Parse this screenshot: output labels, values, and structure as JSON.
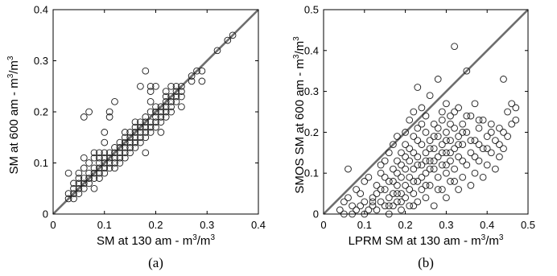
{
  "chart_data": [
    {
      "type": "scatter",
      "caption": "(a)",
      "xlabel": "SM at 130 am - m",
      "ylabel": "SM at 600 am - m",
      "unit_sup": "3",
      "unit_tail": "/m",
      "xlim": [
        0,
        0.4
      ],
      "ylim": [
        0,
        0.4
      ],
      "xticks": [
        "0",
        "0.1",
        "0.2",
        "0.3",
        "0.4"
      ],
      "yticks": [
        "0",
        "0.1",
        "0.2",
        "0.3",
        "0.4"
      ],
      "xtick_values": [
        0,
        0.1,
        0.2,
        0.3,
        0.4
      ],
      "ytick_values": [
        0,
        0.1,
        0.2,
        0.3,
        0.4
      ],
      "reference_line": "1:1",
      "marker": "open-circle",
      "points": [
        [
          0.03,
          0.03
        ],
        [
          0.03,
          0.04
        ],
        [
          0.03,
          0.08
        ],
        [
          0.04,
          0.03
        ],
        [
          0.04,
          0.04
        ],
        [
          0.04,
          0.05
        ],
        [
          0.04,
          0.06
        ],
        [
          0.05,
          0.04
        ],
        [
          0.05,
          0.05
        ],
        [
          0.05,
          0.06
        ],
        [
          0.05,
          0.07
        ],
        [
          0.05,
          0.08
        ],
        [
          0.06,
          0.05
        ],
        [
          0.06,
          0.06
        ],
        [
          0.06,
          0.07
        ],
        [
          0.06,
          0.09
        ],
        [
          0.06,
          0.11
        ],
        [
          0.06,
          0.19
        ],
        [
          0.07,
          0.06
        ],
        [
          0.07,
          0.07
        ],
        [
          0.07,
          0.08
        ],
        [
          0.07,
          0.1
        ],
        [
          0.07,
          0.2
        ],
        [
          0.08,
          0.05
        ],
        [
          0.08,
          0.07
        ],
        [
          0.08,
          0.08
        ],
        [
          0.08,
          0.09
        ],
        [
          0.08,
          0.11
        ],
        [
          0.08,
          0.12
        ],
        [
          0.09,
          0.07
        ],
        [
          0.09,
          0.08
        ],
        [
          0.09,
          0.09
        ],
        [
          0.09,
          0.1
        ],
        [
          0.09,
          0.11
        ],
        [
          0.09,
          0.12
        ],
        [
          0.1,
          0.08
        ],
        [
          0.1,
          0.09
        ],
        [
          0.1,
          0.1
        ],
        [
          0.1,
          0.11
        ],
        [
          0.1,
          0.12
        ],
        [
          0.1,
          0.14
        ],
        [
          0.1,
          0.16
        ],
        [
          0.11,
          0.09
        ],
        [
          0.11,
          0.1
        ],
        [
          0.11,
          0.11
        ],
        [
          0.11,
          0.12
        ],
        [
          0.11,
          0.19
        ],
        [
          0.11,
          0.2
        ],
        [
          0.12,
          0.09
        ],
        [
          0.12,
          0.1
        ],
        [
          0.12,
          0.11
        ],
        [
          0.12,
          0.12
        ],
        [
          0.12,
          0.13
        ],
        [
          0.12,
          0.22
        ],
        [
          0.13,
          0.1
        ],
        [
          0.13,
          0.11
        ],
        [
          0.13,
          0.12
        ],
        [
          0.13,
          0.13
        ],
        [
          0.13,
          0.14
        ],
        [
          0.14,
          0.11
        ],
        [
          0.14,
          0.12
        ],
        [
          0.14,
          0.13
        ],
        [
          0.14,
          0.14
        ],
        [
          0.14,
          0.15
        ],
        [
          0.14,
          0.16
        ],
        [
          0.15,
          0.12
        ],
        [
          0.15,
          0.13
        ],
        [
          0.15,
          0.14
        ],
        [
          0.15,
          0.15
        ],
        [
          0.15,
          0.16
        ],
        [
          0.16,
          0.13
        ],
        [
          0.16,
          0.14
        ],
        [
          0.16,
          0.15
        ],
        [
          0.16,
          0.16
        ],
        [
          0.16,
          0.17
        ],
        [
          0.16,
          0.18
        ],
        [
          0.17,
          0.14
        ],
        [
          0.17,
          0.15
        ],
        [
          0.17,
          0.16
        ],
        [
          0.17,
          0.17
        ],
        [
          0.17,
          0.18
        ],
        [
          0.17,
          0.25
        ],
        [
          0.18,
          0.12
        ],
        [
          0.18,
          0.15
        ],
        [
          0.18,
          0.16
        ],
        [
          0.18,
          0.17
        ],
        [
          0.18,
          0.18
        ],
        [
          0.18,
          0.19
        ],
        [
          0.18,
          0.28
        ],
        [
          0.19,
          0.16
        ],
        [
          0.19,
          0.17
        ],
        [
          0.19,
          0.18
        ],
        [
          0.19,
          0.2
        ],
        [
          0.19,
          0.22
        ],
        [
          0.19,
          0.24
        ],
        [
          0.19,
          0.25
        ],
        [
          0.2,
          0.17
        ],
        [
          0.2,
          0.18
        ],
        [
          0.2,
          0.19
        ],
        [
          0.2,
          0.2
        ],
        [
          0.2,
          0.21
        ],
        [
          0.2,
          0.25
        ],
        [
          0.21,
          0.16
        ],
        [
          0.21,
          0.18
        ],
        [
          0.21,
          0.19
        ],
        [
          0.21,
          0.2
        ],
        [
          0.21,
          0.21
        ],
        [
          0.22,
          0.19
        ],
        [
          0.22,
          0.2
        ],
        [
          0.22,
          0.21
        ],
        [
          0.22,
          0.22
        ],
        [
          0.22,
          0.23
        ],
        [
          0.22,
          0.24
        ],
        [
          0.23,
          0.2
        ],
        [
          0.23,
          0.21
        ],
        [
          0.23,
          0.22
        ],
        [
          0.23,
          0.23
        ],
        [
          0.23,
          0.25
        ],
        [
          0.24,
          0.22
        ],
        [
          0.24,
          0.23
        ],
        [
          0.24,
          0.24
        ],
        [
          0.24,
          0.25
        ],
        [
          0.25,
          0.21
        ],
        [
          0.25,
          0.23
        ],
        [
          0.25,
          0.24
        ],
        [
          0.25,
          0.25
        ],
        [
          0.27,
          0.26
        ],
        [
          0.27,
          0.27
        ],
        [
          0.28,
          0.28
        ],
        [
          0.29,
          0.26
        ],
        [
          0.29,
          0.28
        ],
        [
          0.32,
          0.32
        ],
        [
          0.34,
          0.34
        ],
        [
          0.35,
          0.35
        ]
      ]
    },
    {
      "type": "scatter",
      "caption": "(b)",
      "xlabel": "LPRM SM at 130 am - m",
      "ylabel": "SMOS SM at 600 am - m",
      "unit_sup": "3",
      "unit_tail": "/m",
      "xlim": [
        0,
        0.5
      ],
      "ylim": [
        0,
        0.5
      ],
      "xticks": [
        "0",
        "0.1",
        "0.2",
        "0.3",
        "0.4",
        "0.5"
      ],
      "yticks": [
        "0",
        "0.1",
        "0.2",
        "0.3",
        "0.4",
        "0.5"
      ],
      "xtick_values": [
        0,
        0.1,
        0.2,
        0.3,
        0.4,
        0.5
      ],
      "ytick_values": [
        0,
        0.1,
        0.2,
        0.3,
        0.4,
        0.5
      ],
      "reference_line": "1:1",
      "marker": "open-circle",
      "points": [
        [
          0.04,
          0.01
        ],
        [
          0.05,
          0.03
        ],
        [
          0.05,
          0.0
        ],
        [
          0.06,
          0.04
        ],
        [
          0.06,
          0.11
        ],
        [
          0.07,
          0.02
        ],
        [
          0.07,
          0.0
        ],
        [
          0.08,
          0.06
        ],
        [
          0.08,
          0.01
        ],
        [
          0.09,
          0.02
        ],
        [
          0.09,
          0.05
        ],
        [
          0.1,
          0.03
        ],
        [
          0.1,
          0.08
        ],
        [
          0.1,
          0.0
        ],
        [
          0.11,
          0.01
        ],
        [
          0.11,
          0.09
        ],
        [
          0.12,
          0.04
        ],
        [
          0.12,
          0.02
        ],
        [
          0.13,
          0.07
        ],
        [
          0.13,
          0.05
        ],
        [
          0.13,
          0.01
        ],
        [
          0.14,
          0.03
        ],
        [
          0.14,
          0.1
        ],
        [
          0.14,
          0.12
        ],
        [
          0.15,
          0.06
        ],
        [
          0.15,
          0.02
        ],
        [
          0.15,
          0.13
        ],
        [
          0.16,
          0.04
        ],
        [
          0.16,
          0.08
        ],
        [
          0.16,
          0.0
        ],
        [
          0.16,
          0.15
        ],
        [
          0.17,
          0.05
        ],
        [
          0.17,
          0.11
        ],
        [
          0.17,
          0.02
        ],
        [
          0.17,
          0.17
        ],
        [
          0.18,
          0.07
        ],
        [
          0.18,
          0.03
        ],
        [
          0.18,
          0.13
        ],
        [
          0.18,
          0.19
        ],
        [
          0.19,
          0.09
        ],
        [
          0.19,
          0.05
        ],
        [
          0.19,
          0.01
        ],
        [
          0.19,
          0.15
        ],
        [
          0.2,
          0.04
        ],
        [
          0.2,
          0.11
        ],
        [
          0.2,
          0.07
        ],
        [
          0.2,
          0.2
        ],
        [
          0.2,
          0.17
        ],
        [
          0.21,
          0.02
        ],
        [
          0.21,
          0.13
        ],
        [
          0.21,
          0.09
        ],
        [
          0.21,
          0.23
        ],
        [
          0.22,
          0.05
        ],
        [
          0.22,
          0.15
        ],
        [
          0.22,
          0.11
        ],
        [
          0.22,
          0.19
        ],
        [
          0.22,
          0.25
        ],
        [
          0.23,
          0.03
        ],
        [
          0.23,
          0.08
        ],
        [
          0.23,
          0.14
        ],
        [
          0.23,
          0.21
        ],
        [
          0.23,
          0.31
        ],
        [
          0.24,
          0.06
        ],
        [
          0.24,
          0.12
        ],
        [
          0.24,
          0.17
        ],
        [
          0.24,
          0.26
        ],
        [
          0.25,
          0.04
        ],
        [
          0.25,
          0.1
        ],
        [
          0.25,
          0.15
        ],
        [
          0.25,
          0.2
        ],
        [
          0.25,
          0.24
        ],
        [
          0.26,
          0.07
        ],
        [
          0.26,
          0.13
        ],
        [
          0.26,
          0.18
        ],
        [
          0.26,
          0.29
        ],
        [
          0.27,
          0.02
        ],
        [
          0.27,
          0.11
        ],
        [
          0.27,
          0.16
        ],
        [
          0.27,
          0.22
        ],
        [
          0.28,
          0.09
        ],
        [
          0.28,
          0.14
        ],
        [
          0.28,
          0.19
        ],
        [
          0.28,
          0.33
        ],
        [
          0.29,
          0.06
        ],
        [
          0.29,
          0.12
        ],
        [
          0.29,
          0.17
        ],
        [
          0.29,
          0.23
        ],
        [
          0.3,
          0.04
        ],
        [
          0.3,
          0.1
        ],
        [
          0.3,
          0.15
        ],
        [
          0.3,
          0.2
        ],
        [
          0.3,
          0.27
        ],
        [
          0.31,
          0.08
        ],
        [
          0.31,
          0.13
        ],
        [
          0.31,
          0.18
        ],
        [
          0.31,
          0.24
        ],
        [
          0.32,
          0.11
        ],
        [
          0.32,
          0.16
        ],
        [
          0.32,
          0.21
        ],
        [
          0.32,
          0.41
        ],
        [
          0.33,
          0.06
        ],
        [
          0.33,
          0.14
        ],
        [
          0.33,
          0.19
        ],
        [
          0.33,
          0.26
        ],
        [
          0.34,
          0.09
        ],
        [
          0.34,
          0.17
        ],
        [
          0.34,
          0.22
        ],
        [
          0.35,
          0.12
        ],
        [
          0.35,
          0.2
        ],
        [
          0.35,
          0.35
        ],
        [
          0.36,
          0.07
        ],
        [
          0.36,
          0.15
        ],
        [
          0.36,
          0.24
        ],
        [
          0.37,
          0.1
        ],
        [
          0.37,
          0.18
        ],
        [
          0.37,
          0.27
        ],
        [
          0.38,
          0.13
        ],
        [
          0.38,
          0.21
        ],
        [
          0.39,
          0.09
        ],
        [
          0.39,
          0.16
        ],
        [
          0.39,
          0.23
        ],
        [
          0.4,
          0.12
        ],
        [
          0.4,
          0.19
        ],
        [
          0.41,
          0.15
        ],
        [
          0.41,
          0.22
        ],
        [
          0.42,
          0.11
        ],
        [
          0.42,
          0.18
        ],
        [
          0.43,
          0.14
        ],
        [
          0.43,
          0.21
        ],
        [
          0.44,
          0.16
        ],
        [
          0.44,
          0.33
        ],
        [
          0.45,
          0.19
        ],
        [
          0.45,
          0.25
        ],
        [
          0.46,
          0.22
        ],
        [
          0.46,
          0.27
        ],
        [
          0.47,
          0.23
        ],
        [
          0.47,
          0.26
        ],
        [
          0.12,
          0.03
        ],
        [
          0.14,
          0.06
        ],
        [
          0.15,
          0.09
        ],
        [
          0.16,
          0.02
        ],
        [
          0.17,
          0.08
        ],
        [
          0.18,
          0.1
        ],
        [
          0.18,
          0.05
        ],
        [
          0.19,
          0.12
        ],
        [
          0.19,
          0.03
        ],
        [
          0.2,
          0.14
        ],
        [
          0.21,
          0.06
        ],
        [
          0.21,
          0.16
        ],
        [
          0.22,
          0.08
        ],
        [
          0.22,
          0.02
        ],
        [
          0.23,
          0.18
        ],
        [
          0.23,
          0.12
        ],
        [
          0.24,
          0.09
        ],
        [
          0.24,
          0.22
        ],
        [
          0.25,
          0.13
        ],
        [
          0.25,
          0.07
        ],
        [
          0.26,
          0.16
        ],
        [
          0.26,
          0.11
        ],
        [
          0.27,
          0.19
        ],
        [
          0.27,
          0.13
        ],
        [
          0.28,
          0.21
        ],
        [
          0.28,
          0.06
        ],
        [
          0.29,
          0.15
        ],
        [
          0.29,
          0.25
        ],
        [
          0.3,
          0.18
        ],
        [
          0.3,
          0.12
        ],
        [
          0.31,
          0.22
        ],
        [
          0.31,
          0.15
        ],
        [
          0.32,
          0.25
        ],
        [
          0.32,
          0.08
        ],
        [
          0.33,
          0.17
        ],
        [
          0.34,
          0.2
        ],
        [
          0.34,
          0.13
        ],
        [
          0.35,
          0.24
        ],
        [
          0.36,
          0.18
        ],
        [
          0.37,
          0.14
        ],
        [
          0.38,
          0.17
        ],
        [
          0.38,
          0.23
        ],
        [
          0.4,
          0.16
        ],
        [
          0.41,
          0.2
        ],
        [
          0.43,
          0.17
        ],
        [
          0.44,
          0.2
        ]
      ]
    }
  ]
}
